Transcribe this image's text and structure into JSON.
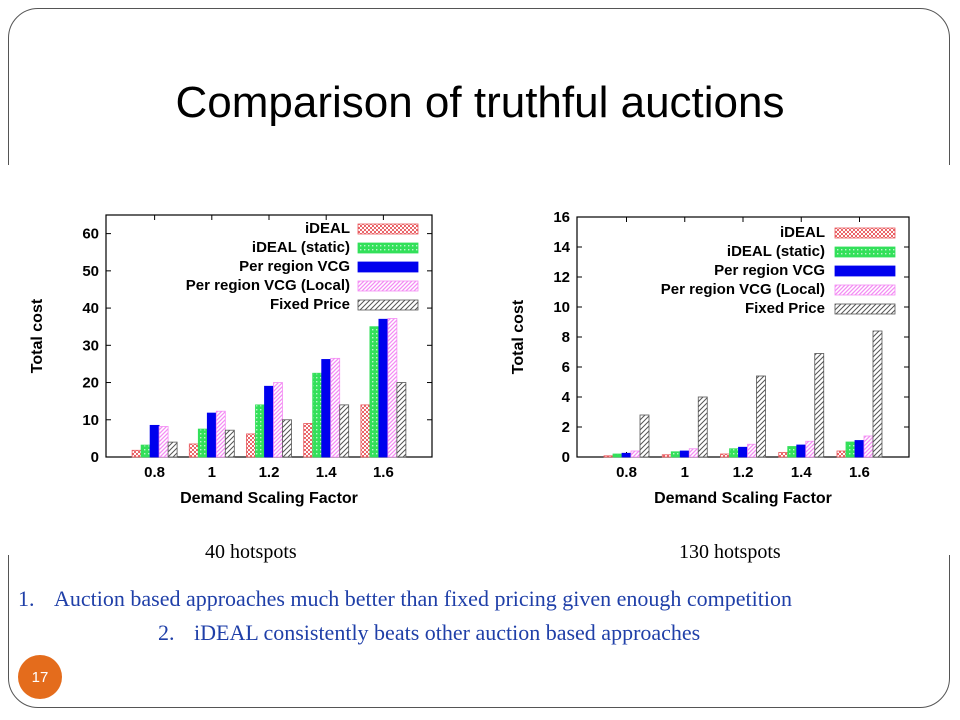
{
  "slide": {
    "title": "Comparison of truthful auctions",
    "number": "17",
    "captions": [
      "40 hotspots",
      "130 hotspots"
    ],
    "points": [
      {
        "num": "1.",
        "text": "Auction based approaches much better than fixed pricing given enough competition"
      },
      {
        "num": "2.",
        "text": "iDEAL consistently beats other auction based approaches"
      }
    ]
  },
  "chart_data": [
    {
      "type": "bar",
      "xlabel": "Demand Scaling Factor",
      "ylabel": "Total cost",
      "categories": [
        "0.8",
        "1",
        "1.2",
        "1.4",
        "1.6"
      ],
      "ylim": [
        0,
        65
      ],
      "yticks": [
        0,
        10,
        20,
        30,
        40,
        50,
        60
      ],
      "grid": false,
      "legend_position": "top-right",
      "series": [
        {
          "name": "iDEAL",
          "values": [
            1.8,
            3.5,
            6.2,
            9.0,
            14.0
          ],
          "color": "#e8585c",
          "pattern": "dots"
        },
        {
          "name": "iDEAL (static)",
          "values": [
            3.2,
            7.5,
            14.0,
            22.5,
            35.0
          ],
          "color": "#33e05a",
          "pattern": "grid"
        },
        {
          "name": "Per region VCG",
          "values": [
            8.5,
            11.8,
            19.0,
            26.2,
            37.0
          ],
          "color": "#0000ee",
          "pattern": "solid"
        },
        {
          "name": "Per region VCG (Local)",
          "values": [
            8.2,
            12.3,
            20.0,
            26.5,
            37.2
          ],
          "color": "#f48cf4",
          "pattern": "diag"
        },
        {
          "name": "Fixed Price",
          "values": [
            4.0,
            7.2,
            10.0,
            14.0,
            20.0
          ],
          "color": "#555555",
          "pattern": "hatch"
        }
      ]
    },
    {
      "type": "bar",
      "xlabel": "Demand Scaling Factor",
      "ylabel": "Total cost",
      "categories": [
        "0.8",
        "1",
        "1.2",
        "1.4",
        "1.6"
      ],
      "ylim": [
        0,
        16
      ],
      "yticks": [
        0,
        2,
        4,
        6,
        8,
        10,
        12,
        14,
        16
      ],
      "grid": false,
      "legend_position": "top-right",
      "series": [
        {
          "name": "iDEAL",
          "values": [
            0.08,
            0.15,
            0.2,
            0.3,
            0.4
          ],
          "color": "#e8585c",
          "pattern": "dots"
        },
        {
          "name": "iDEAL (static)",
          "values": [
            0.2,
            0.35,
            0.55,
            0.7,
            1.0
          ],
          "color": "#33e05a",
          "pattern": "grid"
        },
        {
          "name": "Per region VCG",
          "values": [
            0.25,
            0.4,
            0.65,
            0.8,
            1.1
          ],
          "color": "#0000ee",
          "pattern": "solid"
        },
        {
          "name": "Per region VCG (Local)",
          "values": [
            0.4,
            0.55,
            0.85,
            1.05,
            1.4
          ],
          "color": "#f48cf4",
          "pattern": "diag"
        },
        {
          "name": "Fixed Price",
          "values": [
            2.8,
            4.0,
            5.4,
            6.9,
            8.4
          ],
          "color": "#555555",
          "pattern": "hatch"
        }
      ]
    }
  ]
}
